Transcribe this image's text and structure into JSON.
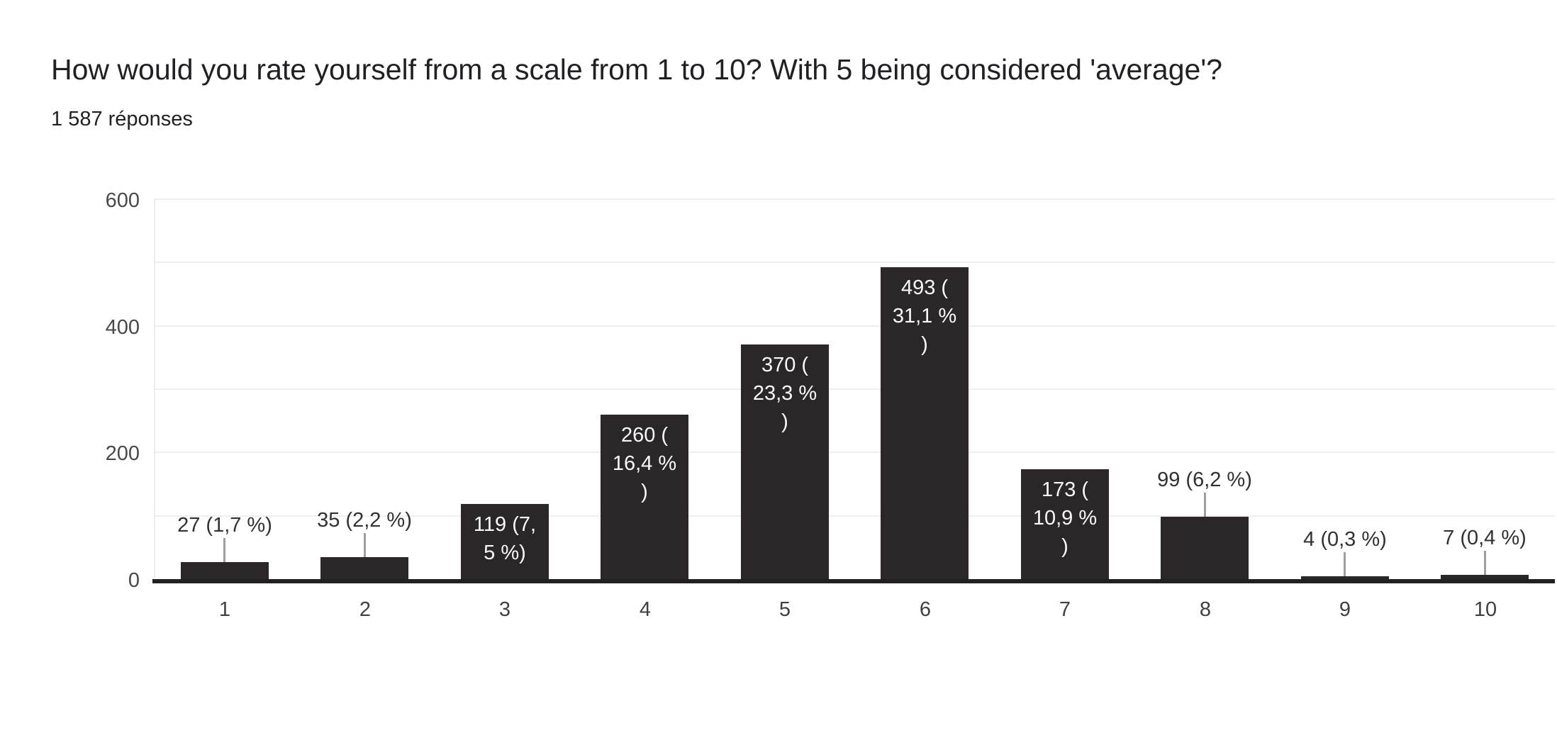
{
  "header": {
    "title": "How would you rate yourself from a scale from 1 to 10? With 5 being considered 'average'?",
    "responses_count": "1 587 réponses"
  },
  "chart_data": {
    "type": "bar",
    "title": "How would you rate yourself from a scale from 1 to 10? With 5 being considered 'average'?",
    "subtitle": "1 587 réponses",
    "categories": [
      "1",
      "2",
      "3",
      "4",
      "5",
      "6",
      "7",
      "8",
      "9",
      "10"
    ],
    "values": [
      27,
      35,
      119,
      260,
      370,
      493,
      173,
      99,
      4,
      7
    ],
    "percentages": [
      "1,7 %",
      "2,2 %",
      "7,5 %",
      "16,4 %",
      "23,3 %",
      "31,1 %",
      "10,9 %",
      "6,2 %",
      "0,3 %",
      "0,4 %"
    ],
    "bar_labels": [
      "27 (1,7 %)",
      "35 (2,2 %)",
      "119 (7,5 %)",
      "260 (16,4 %)",
      "370 (23,3 %)",
      "493 (31,1 %)",
      "173 (10,9 %)",
      "99 (6,2 %)",
      "4 (0,3 %)",
      "7 (0,4 %)"
    ],
    "bar_label_lines": [
      [
        "27 (1,7 %)"
      ],
      [
        "35 (2,2 %)"
      ],
      [
        "119 (7,",
        "5 %)"
      ],
      [
        "260 (",
        "16,4 %",
        ")"
      ],
      [
        "370 (",
        "23,3 %",
        ")"
      ],
      [
        "493 (",
        "31,1 %",
        ")"
      ],
      [
        "173 (",
        "10,9 %",
        ")"
      ],
      [
        "99 (6,2 %)"
      ],
      [
        "4 (0,3 %)"
      ],
      [
        "7 (0,4 %)"
      ]
    ],
    "bar_label_placement": [
      "outside",
      "outside",
      "inside",
      "inside",
      "inside",
      "inside",
      "inside",
      "outside",
      "outside",
      "outside"
    ],
    "y_ticks": [
      0,
      200,
      400,
      600
    ],
    "ylim": [
      0,
      600
    ],
    "gridline_step": 100,
    "xlabel": "",
    "ylabel": "",
    "legend": "none",
    "grid": "horizontal",
    "colors": {
      "background": "#ffffff",
      "bar": "#2b2627",
      "baseline": "#212121",
      "gridline": "#eeeeee",
      "axis_edge": "#eeeeee",
      "tick_label": "#494949",
      "category_label": "#3f4043",
      "outside_label": "#303134",
      "inside_label": "#fafafa",
      "connector": "#9e9e9e",
      "title_text": "#202124"
    }
  }
}
